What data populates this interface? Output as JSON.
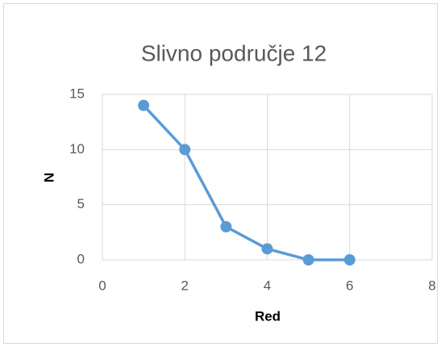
{
  "chart_data": {
    "type": "line",
    "title": "Slivno područje 12",
    "xlabel": "Red",
    "ylabel": "N",
    "series": [
      {
        "name": "N",
        "color": "#5b9bd5",
        "x": [
          1,
          2,
          3,
          4,
          5,
          6
        ],
        "values": [
          14,
          10,
          3,
          1,
          0,
          0
        ]
      }
    ],
    "xlim": [
      0,
      8
    ],
    "xticks": [
      0,
      2,
      4,
      6,
      8
    ],
    "ylim": [
      0,
      15
    ],
    "yticks": [
      0,
      5,
      10,
      15
    ],
    "grid": true
  }
}
